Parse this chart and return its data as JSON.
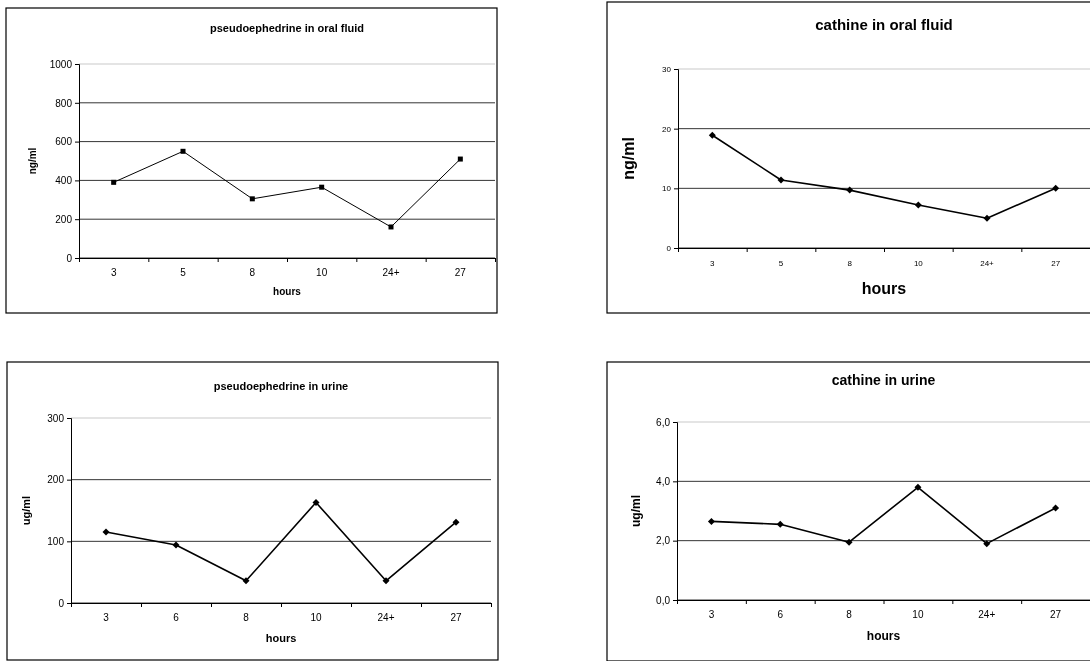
{
  "chart_data": [
    {
      "type": "line",
      "title": "pseudoephedrine in oral fluid",
      "xlabel": "hours",
      "ylabel": "ng/ml",
      "categories": [
        "3",
        "5",
        "8",
        "10",
        "24+",
        "27"
      ],
      "series": [
        {
          "color": "#000000",
          "values": [
            390,
            550,
            305,
            365,
            160,
            510
          ]
        }
      ],
      "ylim": [
        0,
        1000
      ],
      "yticks": [
        0,
        200,
        400,
        600,
        800,
        1000
      ],
      "grid": "y",
      "marker": "square",
      "line_style": "solid"
    },
    {
      "type": "line",
      "title": "cathine in oral fluid",
      "xlabel": "hours",
      "ylabel": "ng/ml",
      "categories": [
        "3",
        "5",
        "8",
        "10",
        "24+",
        "27"
      ],
      "series": [
        {
          "color": "#000000",
          "values": [
            18.9,
            11.4,
            9.7,
            7.2,
            5.0,
            10.0
          ]
        }
      ],
      "ylim": [
        0,
        30
      ],
      "yticks": [
        0,
        10,
        20,
        30
      ],
      "grid": "y",
      "marker": "diamond",
      "line_style": "solid"
    },
    {
      "type": "line",
      "title": "pseudoephedrine in urine",
      "xlabel": "hours",
      "ylabel": "ug/ml",
      "categories": [
        "3",
        "6",
        "8",
        "10",
        "24+",
        "27"
      ],
      "series": [
        {
          "color": "#000000",
          "values": [
            115,
            94,
            36,
            163,
            36,
            131
          ]
        }
      ],
      "ylim": [
        0,
        300
      ],
      "yticks": [
        0,
        100,
        200,
        300
      ],
      "grid": "y",
      "marker": "diamond",
      "line_style": "solid"
    },
    {
      "type": "line",
      "title": "cathine in urine",
      "xlabel": "hours",
      "ylabel": "ug/ml",
      "categories": [
        "3",
        "6",
        "8",
        "10",
        "24+",
        "27"
      ],
      "series": [
        {
          "color": "#000000",
          "values": [
            2.65,
            2.55,
            1.95,
            3.8,
            1.9,
            3.1
          ]
        }
      ],
      "ylim": [
        0,
        6
      ],
      "yticks": [
        {
          "value": 0,
          "label": "0,0"
        },
        {
          "value": 2,
          "label": "2,0"
        },
        {
          "value": 4,
          "label": "4,0"
        },
        {
          "value": 6,
          "label": "6,0"
        }
      ],
      "grid": "y",
      "marker": "diamond",
      "line_style": "solid"
    }
  ]
}
